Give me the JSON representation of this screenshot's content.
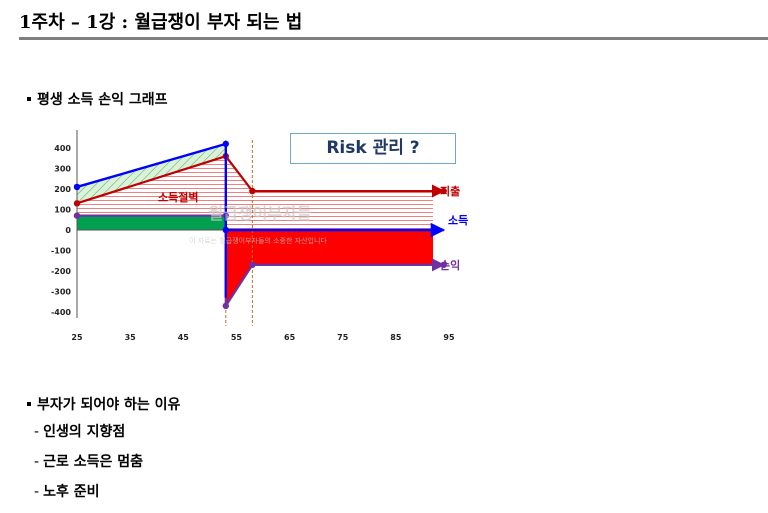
{
  "header": {
    "title": "1주차 – 1강 : 월급쟁이 부자 되는 법"
  },
  "section1": {
    "label": "평생 소득 손익 그래프"
  },
  "chart_data": {
    "type": "line",
    "x_ticks": [
      25,
      35,
      45,
      55,
      65,
      75,
      85,
      95
    ],
    "y_ticks": [
      400,
      300,
      200,
      100,
      0,
      -100,
      -200,
      -300,
      -400
    ],
    "xlim": [
      25,
      95
    ],
    "ylim": [
      -400,
      400
    ],
    "series": [
      {
        "name": "지출",
        "points": [
          [
            25,
            130
          ],
          [
            53,
            360
          ],
          [
            58,
            190
          ],
          [
            92,
            190
          ]
        ],
        "color": "#c00000"
      },
      {
        "name": "소득",
        "points": [
          [
            25,
            210
          ],
          [
            53,
            420
          ],
          [
            53,
            -330
          ],
          [
            53,
            0
          ],
          [
            92,
            0
          ]
        ],
        "color": "#1f1fe0"
      },
      {
        "name": "손익",
        "points": [
          [
            25,
            70
          ],
          [
            53,
            70
          ],
          [
            53,
            -370
          ],
          [
            58,
            -170
          ],
          [
            92,
            -170
          ]
        ],
        "color": "#7030a0"
      }
    ],
    "annotations": {
      "savings_label": "소득절벽",
      "risk_box": "Risk 관리 ?",
      "watermark_title": "월급쟁이부자들",
      "watermark_sub": "이 자료는 월급쟁이부자들의 소중한 자산입니다"
    },
    "colors": {
      "expense": "#c00000",
      "income": "#0000ff",
      "profit": "#7030a0",
      "savings": "#00a050",
      "loss": "#ff0000"
    }
  },
  "section2": {
    "label": "부자가 되어야 하는 이유",
    "items": [
      "인생의 지향점",
      "근로 소득은 멈춤",
      "노후 준비"
    ],
    "dash": "-"
  }
}
